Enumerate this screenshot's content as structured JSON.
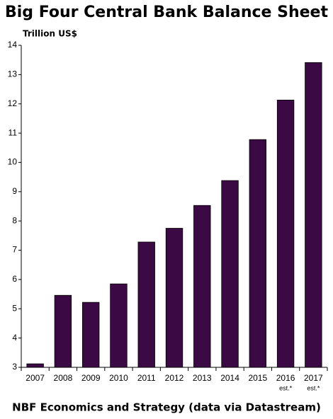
{
  "chart_data": {
    "type": "bar",
    "title": "Big Four Central Bank Balance Sheet",
    "y_label": "Trillion US$",
    "source": "NBF Economics and Strategy (data via Datastream)",
    "categories": [
      "2007",
      "2008",
      "2009",
      "2010",
      "2011",
      "2012",
      "2013",
      "2014",
      "2015",
      "2016",
      "2017"
    ],
    "category_notes": [
      null,
      null,
      null,
      null,
      null,
      null,
      null,
      null,
      null,
      "est.*",
      "est.*"
    ],
    "values": [
      3.12,
      5.46,
      5.22,
      5.85,
      7.28,
      7.75,
      8.53,
      9.38,
      10.78,
      12.13,
      13.41
    ],
    "color": "#3b0a45",
    "ylim": [
      3,
      14
    ],
    "yticks": [
      3,
      4,
      5,
      6,
      7,
      8,
      9,
      10,
      11,
      12,
      13,
      14
    ],
    "grid": false
  }
}
